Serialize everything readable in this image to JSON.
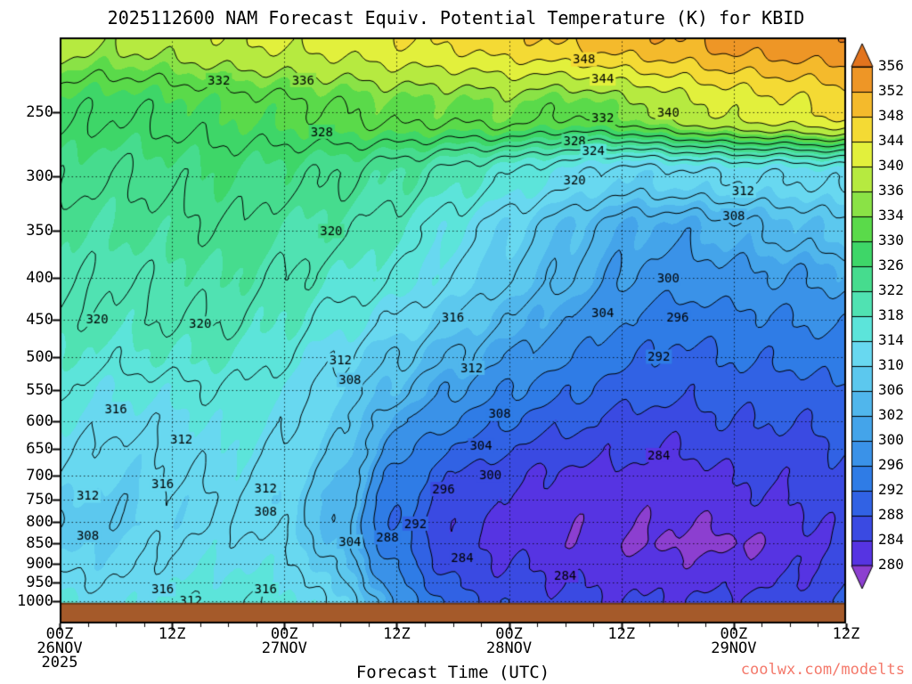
{
  "watermark": "coolwx.com/modelts",
  "colors": {
    "watermark": "#f4796b",
    "terrain": "#a55a2a",
    "terrain_edge": "#6b3a16",
    "contour_line": "#000000",
    "background": "#ffffff"
  },
  "axes": {
    "pressure_ticks": [
      250,
      300,
      350,
      400,
      450,
      500,
      550,
      600,
      650,
      700,
      750,
      800,
      850,
      900,
      950,
      1000
    ],
    "time_ticks": [
      {
        "hour": 0,
        "lines": [
          "00Z",
          "26NOV",
          "2025"
        ]
      },
      {
        "hour": 12,
        "lines": [
          "12Z"
        ]
      },
      {
        "hour": 24,
        "lines": [
          "00Z",
          "27NOV"
        ]
      },
      {
        "hour": 36,
        "lines": [
          "12Z"
        ]
      },
      {
        "hour": 48,
        "lines": [
          "00Z",
          "28NOV"
        ]
      },
      {
        "hour": 60,
        "lines": [
          "12Z"
        ]
      },
      {
        "hour": 72,
        "lines": [
          "00Z",
          "29NOV"
        ]
      },
      {
        "hour": 84,
        "lines": [
          "12Z"
        ]
      }
    ]
  },
  "chart_data": {
    "type": "contour",
    "title": "2025112600 NAM Forecast Equiv. Potential Temperature (K) for KBID",
    "xlabel": "Forecast Time (UTC)",
    "ylabel": "",
    "units": "K",
    "contour_interval": 4,
    "terrain_pressure": 1008,
    "x_hours": [
      0,
      6,
      12,
      18,
      24,
      30,
      36,
      42,
      48,
      54,
      60,
      66,
      72,
      78,
      84
    ],
    "pressure_levels": [
      1000,
      950,
      900,
      850,
      800,
      750,
      700,
      650,
      600,
      550,
      500,
      450,
      400,
      350,
      300,
      250,
      200
    ],
    "values": [
      [
        315,
        313,
        315,
        316,
        315,
        311,
        300,
        290,
        287,
        285,
        284,
        284,
        285,
        286,
        288
      ],
      [
        313,
        312,
        314,
        315,
        314,
        309,
        297,
        288,
        285,
        284,
        283,
        283,
        283,
        284,
        287
      ],
      [
        311,
        311,
        313,
        314,
        313,
        307,
        295,
        286,
        284,
        283,
        282,
        281,
        281,
        283,
        286
      ],
      [
        309,
        310,
        312,
        313,
        312,
        305,
        293,
        285,
        283,
        281,
        280,
        279,
        279,
        282,
        285
      ],
      [
        308,
        309,
        311,
        312,
        311,
        304,
        292,
        285,
        283,
        281,
        281,
        280,
        281,
        283,
        285
      ],
      [
        310,
        309,
        311,
        312,
        310,
        305,
        293,
        286,
        284,
        282,
        282,
        281,
        283,
        284,
        286
      ],
      [
        312,
        310,
        312,
        313,
        311,
        306,
        295,
        288,
        285,
        283,
        283,
        282,
        284,
        285,
        287
      ],
      [
        313,
        311,
        312,
        314,
        312,
        308,
        298,
        292,
        288,
        286,
        285,
        284,
        286,
        286,
        288
      ],
      [
        314,
        313,
        313,
        315,
        313,
        309,
        301,
        296,
        292,
        289,
        287,
        286,
        288,
        288,
        290
      ],
      [
        316,
        314,
        315,
        316,
        314,
        310,
        305,
        300,
        296,
        293,
        290,
        289,
        290,
        290,
        292
      ],
      [
        318,
        317,
        318,
        318,
        316,
        312,
        308,
        304,
        300,
        297,
        293,
        291,
        292,
        293,
        294
      ],
      [
        320,
        319,
        320,
        320,
        318,
        315,
        312,
        308,
        304,
        300,
        296,
        294,
        295,
        296,
        297
      ],
      [
        321,
        320,
        321,
        322,
        320,
        318,
        316,
        312,
        308,
        304,
        300,
        298,
        299,
        300,
        301
      ],
      [
        322,
        322,
        323,
        324,
        322,
        321,
        318,
        314,
        310,
        306,
        302,
        301,
        303,
        305,
        307
      ],
      [
        325,
        324,
        325,
        326,
        325,
        324,
        322,
        319,
        316,
        313,
        310,
        311,
        312,
        312,
        313
      ],
      [
        329,
        328,
        329,
        330,
        331,
        332,
        333,
        333,
        334,
        332,
        334,
        338,
        341,
        343,
        345
      ],
      [
        338,
        337,
        338,
        340,
        341,
        342,
        344,
        345,
        347,
        349,
        351,
        352,
        354,
        355,
        356
      ]
    ],
    "colorbar": {
      "tick_labels": [
        356,
        352,
        348,
        344,
        340,
        336,
        334,
        330,
        326,
        322,
        318,
        314,
        310,
        306,
        302,
        300,
        296,
        292,
        288,
        284,
        280
      ],
      "levels_ascending": [
        280,
        284,
        288,
        292,
        296,
        300,
        302,
        306,
        310,
        314,
        318,
        322,
        326,
        330,
        334,
        336,
        340,
        344,
        348,
        352,
        356
      ],
      "band_colors_ascending": [
        "#8c3fd0",
        "#5634e2",
        "#3a4ae2",
        "#3162e4",
        "#2f7ce6",
        "#3a92e8",
        "#44a4ea",
        "#50b6ec",
        "#5cc8ee",
        "#68d8f0",
        "#5ce4da",
        "#50e2b2",
        "#46dc8e",
        "#3ed668",
        "#5ada4a",
        "#8ae246",
        "#b6ea40",
        "#e2f03c",
        "#f4da34",
        "#f4ba2c",
        "#ee9626",
        "#e2741e"
      ]
    },
    "annotations": [
      {
        "v": 332,
        "h": 17,
        "p": 228
      },
      {
        "v": 336,
        "h": 26,
        "p": 228
      },
      {
        "v": 328,
        "h": 28,
        "p": 264
      },
      {
        "v": 320,
        "h": 29,
        "p": 350
      },
      {
        "v": 348,
        "h": 56,
        "p": 215
      },
      {
        "v": 344,
        "h": 58,
        "p": 227
      },
      {
        "v": 340,
        "h": 65,
        "p": 250
      },
      {
        "v": 332,
        "h": 58,
        "p": 254
      },
      {
        "v": 328,
        "h": 55,
        "p": 271
      },
      {
        "v": 324,
        "h": 57,
        "p": 279
      },
      {
        "v": 320,
        "h": 55,
        "p": 303
      },
      {
        "v": 312,
        "h": 73,
        "p": 312
      },
      {
        "v": 308,
        "h": 72,
        "p": 335
      },
      {
        "v": 300,
        "h": 65,
        "p": 400
      },
      {
        "v": 304,
        "h": 58,
        "p": 442
      },
      {
        "v": 296,
        "h": 66,
        "p": 447
      },
      {
        "v": 292,
        "h": 64,
        "p": 500
      },
      {
        "v": 320,
        "h": 4,
        "p": 450
      },
      {
        "v": 320,
        "h": 15,
        "p": 455
      },
      {
        "v": 316,
        "h": 6,
        "p": 580
      },
      {
        "v": 312,
        "h": 13,
        "p": 632
      },
      {
        "v": 312,
        "h": 30,
        "p": 505
      },
      {
        "v": 308,
        "h": 31,
        "p": 534
      },
      {
        "v": 312,
        "h": 44,
        "p": 516
      },
      {
        "v": 308,
        "h": 47,
        "p": 588
      },
      {
        "v": 316,
        "h": 42,
        "p": 447
      },
      {
        "v": 316,
        "h": 11,
        "p": 718
      },
      {
        "v": 312,
        "h": 22,
        "p": 726
      },
      {
        "v": 312,
        "h": 3,
        "p": 742
      },
      {
        "v": 308,
        "h": 22,
        "p": 775
      },
      {
        "v": 308,
        "h": 3,
        "p": 830
      },
      {
        "v": 304,
        "h": 31,
        "p": 845
      },
      {
        "v": 288,
        "h": 35,
        "p": 835
      },
      {
        "v": 292,
        "h": 38,
        "p": 803
      },
      {
        "v": 296,
        "h": 41,
        "p": 728
      },
      {
        "v": 300,
        "h": 46,
        "p": 700
      },
      {
        "v": 304,
        "h": 45,
        "p": 643
      },
      {
        "v": 284,
        "h": 43,
        "p": 885
      },
      {
        "v": 284,
        "h": 54,
        "p": 930
      },
      {
        "v": 284,
        "h": 64,
        "p": 661
      },
      {
        "v": 316,
        "h": 11,
        "p": 968
      },
      {
        "v": 316,
        "h": 22,
        "p": 968
      },
      {
        "v": 312,
        "h": 14,
        "p": 1000
      }
    ]
  }
}
